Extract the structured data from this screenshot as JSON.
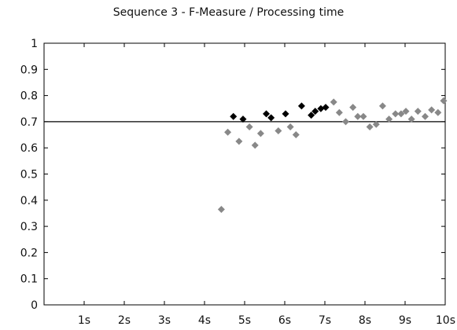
{
  "chart_data": {
    "type": "scatter",
    "title": "Sequence 3 - F-Measure / Processing time",
    "xlabel": "",
    "ylabel": "",
    "xlim": [
      0,
      10
    ],
    "ylim": [
      0,
      1
    ],
    "x_ticks": [
      {
        "value": 1,
        "label": "1s"
      },
      {
        "value": 2,
        "label": "2s"
      },
      {
        "value": 3,
        "label": "3s"
      },
      {
        "value": 4,
        "label": "4s"
      },
      {
        "value": 5,
        "label": "5s"
      },
      {
        "value": 6,
        "label": "6s"
      },
      {
        "value": 7,
        "label": "7s"
      },
      {
        "value": 8,
        "label": "8s"
      },
      {
        "value": 9,
        "label": "9s"
      },
      {
        "value": 10,
        "label": "10s"
      }
    ],
    "y_ticks": [
      {
        "value": 0,
        "label": "0"
      },
      {
        "value": 0.1,
        "label": "0.1"
      },
      {
        "value": 0.2,
        "label": "0.2"
      },
      {
        "value": 0.3,
        "label": "0.3"
      },
      {
        "value": 0.4,
        "label": "0.4"
      },
      {
        "value": 0.5,
        "label": "0.5"
      },
      {
        "value": 0.6,
        "label": "0.6"
      },
      {
        "value": 0.7,
        "label": "0.7"
      },
      {
        "value": 0.8,
        "label": "0.8"
      },
      {
        "value": 0.9,
        "label": "0.9"
      },
      {
        "value": 1,
        "label": "1"
      }
    ],
    "reference_line": {
      "y": 0.7,
      "color": "#000000"
    },
    "marker": "diamond",
    "grid": false,
    "series": [
      {
        "color": "#000000",
        "points": [
          {
            "x": 4.72,
            "y": 0.72
          },
          {
            "x": 4.96,
            "y": 0.71
          },
          {
            "x": 5.54,
            "y": 0.73
          },
          {
            "x": 5.66,
            "y": 0.715
          },
          {
            "x": 6.02,
            "y": 0.73
          },
          {
            "x": 6.42,
            "y": 0.76
          },
          {
            "x": 6.66,
            "y": 0.725
          },
          {
            "x": 6.76,
            "y": 0.74
          },
          {
            "x": 6.9,
            "y": 0.75
          },
          {
            "x": 7.02,
            "y": 0.755
          }
        ]
      },
      {
        "color": "#888888",
        "points": [
          {
            "x": 4.42,
            "y": 0.365
          },
          {
            "x": 4.58,
            "y": 0.66
          },
          {
            "x": 4.86,
            "y": 0.625
          },
          {
            "x": 5.12,
            "y": 0.68
          },
          {
            "x": 5.26,
            "y": 0.61
          },
          {
            "x": 5.4,
            "y": 0.655
          },
          {
            "x": 5.84,
            "y": 0.665
          },
          {
            "x": 6.14,
            "y": 0.68
          },
          {
            "x": 6.28,
            "y": 0.65
          },
          {
            "x": 7.22,
            "y": 0.775
          },
          {
            "x": 7.36,
            "y": 0.735
          },
          {
            "x": 7.52,
            "y": 0.7
          },
          {
            "x": 7.7,
            "y": 0.755
          },
          {
            "x": 7.82,
            "y": 0.72
          },
          {
            "x": 7.96,
            "y": 0.72
          },
          {
            "x": 8.12,
            "y": 0.68
          },
          {
            "x": 8.28,
            "y": 0.69
          },
          {
            "x": 8.44,
            "y": 0.76
          },
          {
            "x": 8.6,
            "y": 0.71
          },
          {
            "x": 8.76,
            "y": 0.73
          },
          {
            "x": 8.9,
            "y": 0.73
          },
          {
            "x": 9.02,
            "y": 0.74
          },
          {
            "x": 9.16,
            "y": 0.71
          },
          {
            "x": 9.32,
            "y": 0.74
          },
          {
            "x": 9.5,
            "y": 0.72
          },
          {
            "x": 9.66,
            "y": 0.745
          },
          {
            "x": 9.82,
            "y": 0.735
          },
          {
            "x": 9.96,
            "y": 0.78
          }
        ]
      }
    ]
  }
}
